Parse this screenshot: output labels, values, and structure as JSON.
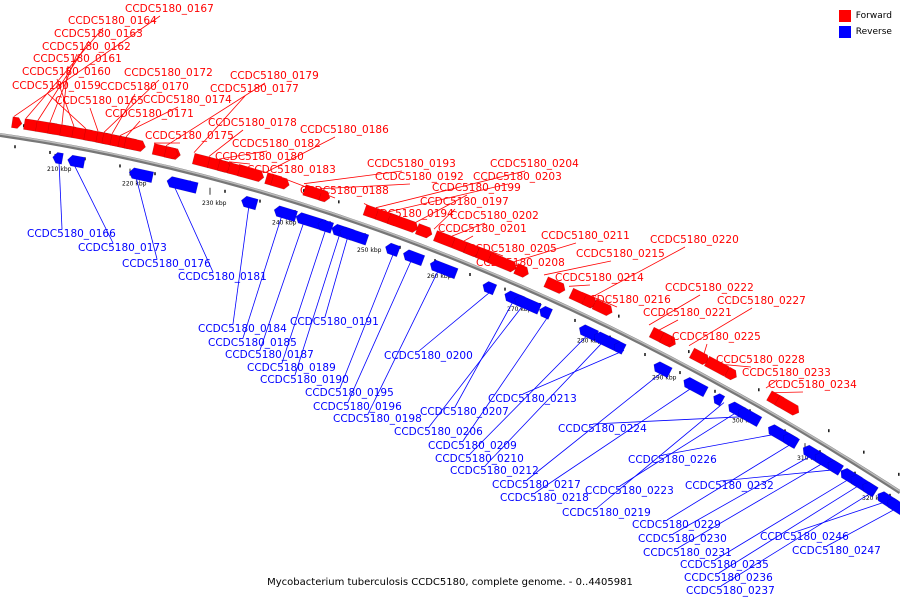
{
  "caption": "Mycobacterium tuberculosis CCDC5180, complete genome. - 0..4405981",
  "legend": {
    "forward_label": "Forward",
    "reverse_label": "Reverse",
    "forward_color": "#ff0000",
    "reverse_color": "#0000ff"
  },
  "ticks": [
    "210 kbp",
    "220 kbp",
    "230 kbp",
    "240 kbp",
    "250 kbp",
    "260 kbp",
    "270 kbp",
    "280 kbp",
    "290 kbp",
    "300 kbp",
    "310 kbp",
    "320 kbp"
  ],
  "forward_genes": [
    "CCDC5180_0167",
    "CCDC5180_0164",
    "CCDC5180_0163",
    "CCDC5180_0162",
    "CCDC5180_0161",
    "CCDC5180_0160",
    "CCDC5180_0159",
    "CCDC5180_0165",
    "CCDC5180_0172",
    "CCDC5180_0170",
    "CCDC5180_0174",
    "CCDC5180_0171",
    "CCDC5180_0175",
    "CCDC5180_0179",
    "CCDC5180_0177",
    "CCDC5180_0178",
    "CCDC5180_0182",
    "CCDC5180_0180",
    "CCDC5180_0183",
    "CCDC5180_0186",
    "CCDC5180_0188",
    "CCDC5180_0193",
    "CCDC5180_0192",
    "CCDC5180_0194",
    "CCDC5180_0204",
    "CCDC5180_0203",
    "CCDC5180_0199",
    "CCDC5180_0197",
    "CCDC5180_0202",
    "CCDC5180_0201",
    "CCDC5180_0205",
    "CCDC5180_0208",
    "CCDC5180_0211",
    "CCDC5180_0215",
    "CCDC5180_0214",
    "CCDC5180_0216",
    "CCDC5180_0220",
    "CCDC5180_0222",
    "CCDC5180_0221",
    "CCDC5180_0227",
    "CCDC5180_0225",
    "CCDC5180_0228",
    "CCDC5180_0233",
    "CCDC5180_0234"
  ],
  "reverse_genes": [
    "CCDC5180_0166",
    "CCDC5180_0173",
    "CCDC5180_0176",
    "CCDC5180_0181",
    "CCDC5180_0184",
    "CCDC5180_0185",
    "CCDC5180_0187",
    "CCDC5180_0189",
    "CCDC5180_0190",
    "CCDC5180_0191",
    "CCDC5180_0195",
    "CCDC5180_0196",
    "CCDC5180_0198",
    "CCDC5180_0200",
    "CCDC5180_0207",
    "CCDC5180_0206",
    "CCDC5180_0209",
    "CCDC5180_0210",
    "CCDC5180_0212",
    "CCDC5180_0213",
    "CCDC5180_0217",
    "CCDC5180_0218",
    "CCDC5180_0219",
    "CCDC5180_0223",
    "CCDC5180_0224",
    "CCDC5180_0226",
    "CCDC5180_0229",
    "CCDC5180_0230",
    "CCDC5180_0231",
    "CCDC5180_0232",
    "CCDC5180_0235",
    "CCDC5180_0236",
    "CCDC5180_0237",
    "CCDC5180_0246",
    "CCDC5180_0247"
  ]
}
